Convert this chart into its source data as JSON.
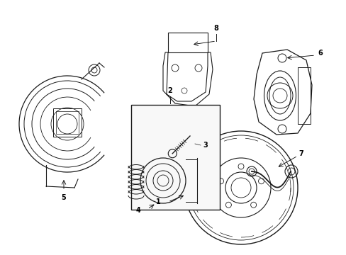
{
  "bg_color": "#ffffff",
  "line_color": "#1a1a1a",
  "figsize": [
    4.89,
    3.6
  ],
  "dpi": 100,
  "lw": 0.7
}
